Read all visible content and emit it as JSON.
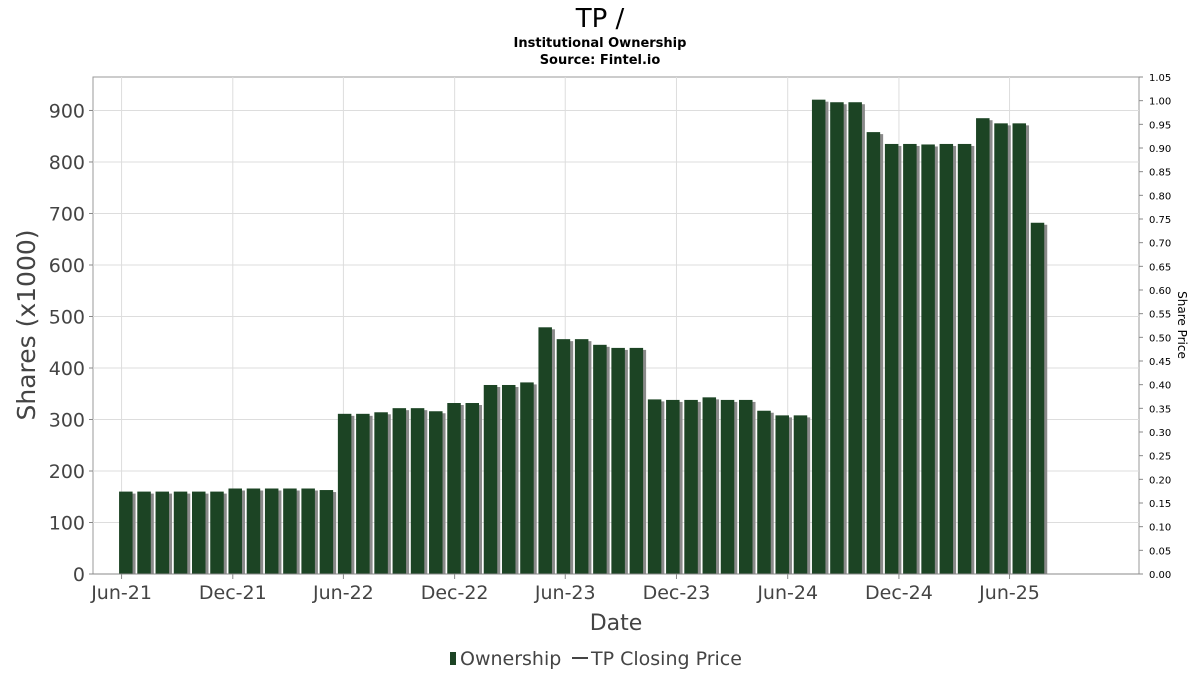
{
  "chart_data": {
    "type": "bar",
    "title": "TP /",
    "subtitle_line1": "Institutional Ownership",
    "subtitle_line2": "Source: Fintel.io",
    "xlabel": "Date",
    "ylabel": "Shares (x1000)",
    "y2label": "Share Price",
    "ylim": [
      0,
      965
    ],
    "y2lim": [
      0,
      1.05
    ],
    "yticks": [
      0,
      100,
      200,
      300,
      400,
      500,
      600,
      700,
      800,
      900
    ],
    "y2ticks": [
      "0.00",
      "0.05",
      "0.10",
      "0.15",
      "0.20",
      "0.25",
      "0.30",
      "0.35",
      "0.40",
      "0.45",
      "0.50",
      "0.55",
      "0.60",
      "0.65",
      "0.70",
      "0.75",
      "0.80",
      "0.85",
      "0.90",
      "0.95",
      "1.00",
      "1.05"
    ],
    "x_start": "2021-04-15",
    "x_end": "2025-12-31",
    "xticks": [
      {
        "label": "Jun-21",
        "date": "2021-06-01"
      },
      {
        "label": "Dec-21",
        "date": "2021-12-01"
      },
      {
        "label": "Jun-22",
        "date": "2022-06-01"
      },
      {
        "label": "Dec-22",
        "date": "2022-12-01"
      },
      {
        "label": "Jun-23",
        "date": "2023-06-01"
      },
      {
        "label": "Dec-23",
        "date": "2023-12-01"
      },
      {
        "label": "Jun-24",
        "date": "2024-06-01"
      },
      {
        "label": "Dec-24",
        "date": "2024-12-01"
      },
      {
        "label": "Jun-25",
        "date": "2025-06-01"
      }
    ],
    "grid": true,
    "legend_position": "bottom-center",
    "series": [
      {
        "name": "Ownership",
        "color": "#1c4424",
        "values": [
          {
            "date": "2021-06-08",
            "value": 160
          },
          {
            "date": "2021-07-08",
            "value": 160
          },
          {
            "date": "2021-08-07",
            "value": 160
          },
          {
            "date": "2021-09-06",
            "value": 160
          },
          {
            "date": "2021-10-06",
            "value": 160
          },
          {
            "date": "2021-11-05",
            "value": 160
          },
          {
            "date": "2021-12-05",
            "value": 166
          },
          {
            "date": "2022-01-04",
            "value": 166
          },
          {
            "date": "2022-02-03",
            "value": 166
          },
          {
            "date": "2022-03-05",
            "value": 166
          },
          {
            "date": "2022-04-04",
            "value": 166
          },
          {
            "date": "2022-05-04",
            "value": 163
          },
          {
            "date": "2022-06-03",
            "value": 311
          },
          {
            "date": "2022-07-03",
            "value": 311
          },
          {
            "date": "2022-08-02",
            "value": 314
          },
          {
            "date": "2022-09-01",
            "value": 322
          },
          {
            "date": "2022-10-01",
            "value": 322
          },
          {
            "date": "2022-10-31",
            "value": 316
          },
          {
            "date": "2022-11-30",
            "value": 332
          },
          {
            "date": "2022-12-30",
            "value": 332
          },
          {
            "date": "2023-01-29",
            "value": 367
          },
          {
            "date": "2023-02-28",
            "value": 367
          },
          {
            "date": "2023-03-30",
            "value": 372
          },
          {
            "date": "2023-04-29",
            "value": 479
          },
          {
            "date": "2023-05-29",
            "value": 456
          },
          {
            "date": "2023-06-28",
            "value": 456
          },
          {
            "date": "2023-07-28",
            "value": 445
          },
          {
            "date": "2023-08-27",
            "value": 439
          },
          {
            "date": "2023-09-26",
            "value": 439
          },
          {
            "date": "2023-10-26",
            "value": 339
          },
          {
            "date": "2023-11-25",
            "value": 338
          },
          {
            "date": "2023-12-25",
            "value": 338
          },
          {
            "date": "2024-01-24",
            "value": 343
          },
          {
            "date": "2024-02-23",
            "value": 338
          },
          {
            "date": "2024-03-24",
            "value": 338
          },
          {
            "date": "2024-04-23",
            "value": 317
          },
          {
            "date": "2024-05-23",
            "value": 308
          },
          {
            "date": "2024-06-22",
            "value": 308
          },
          {
            "date": "2024-07-22",
            "value": 921
          },
          {
            "date": "2024-08-21",
            "value": 916
          },
          {
            "date": "2024-09-20",
            "value": 916
          },
          {
            "date": "2024-10-20",
            "value": 858
          },
          {
            "date": "2024-11-19",
            "value": 835
          },
          {
            "date": "2024-12-19",
            "value": 835
          },
          {
            "date": "2025-01-18",
            "value": 834
          },
          {
            "date": "2025-02-17",
            "value": 835
          },
          {
            "date": "2025-03-19",
            "value": 835
          },
          {
            "date": "2025-04-18",
            "value": 885
          },
          {
            "date": "2025-05-18",
            "value": 875
          },
          {
            "date": "2025-06-17",
            "value": 875
          },
          {
            "date": "2025-07-17",
            "value": 682
          }
        ]
      },
      {
        "name": "TP Closing Price",
        "color": "#444444",
        "values": []
      }
    ]
  },
  "legend": {
    "ownership": "Ownership",
    "price": "TP Closing Price"
  }
}
